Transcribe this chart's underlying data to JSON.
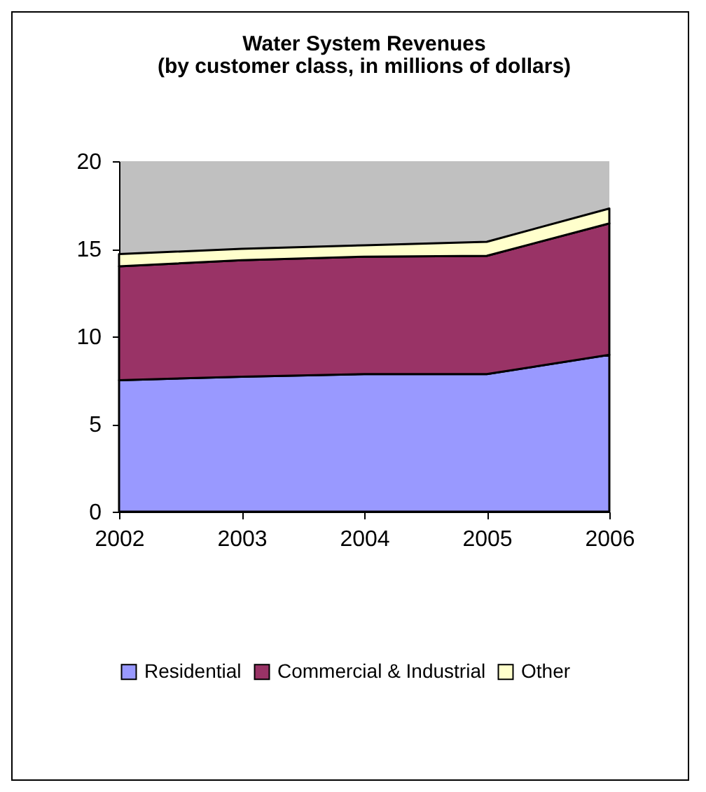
{
  "chart_data": {
    "type": "area",
    "title": "Water System Revenues",
    "subtitle": "(by customer class, in millions of dollars)",
    "x": [
      2002,
      2003,
      2004,
      2005,
      2006
    ],
    "stacked": true,
    "series": [
      {
        "name": "Residential",
        "color": "#9999ff",
        "values": [
          7.5,
          7.7,
          7.85,
          7.85,
          8.95
        ]
      },
      {
        "name": "Commercial & Industrial",
        "color": "#993366",
        "values": [
          6.5,
          6.65,
          6.7,
          6.75,
          7.5
        ]
      },
      {
        "name": "Other",
        "color": "#ffffcc",
        "values": [
          0.7,
          0.65,
          0.65,
          0.8,
          0.85
        ]
      }
    ],
    "xlim": [
      2002,
      2006
    ],
    "xticks": [
      2002,
      2003,
      2004,
      2005,
      2006
    ],
    "ylim": [
      0,
      20
    ],
    "yticks": [
      0,
      5,
      10,
      15,
      20
    ],
    "grid": false,
    "legend": "bottom"
  }
}
